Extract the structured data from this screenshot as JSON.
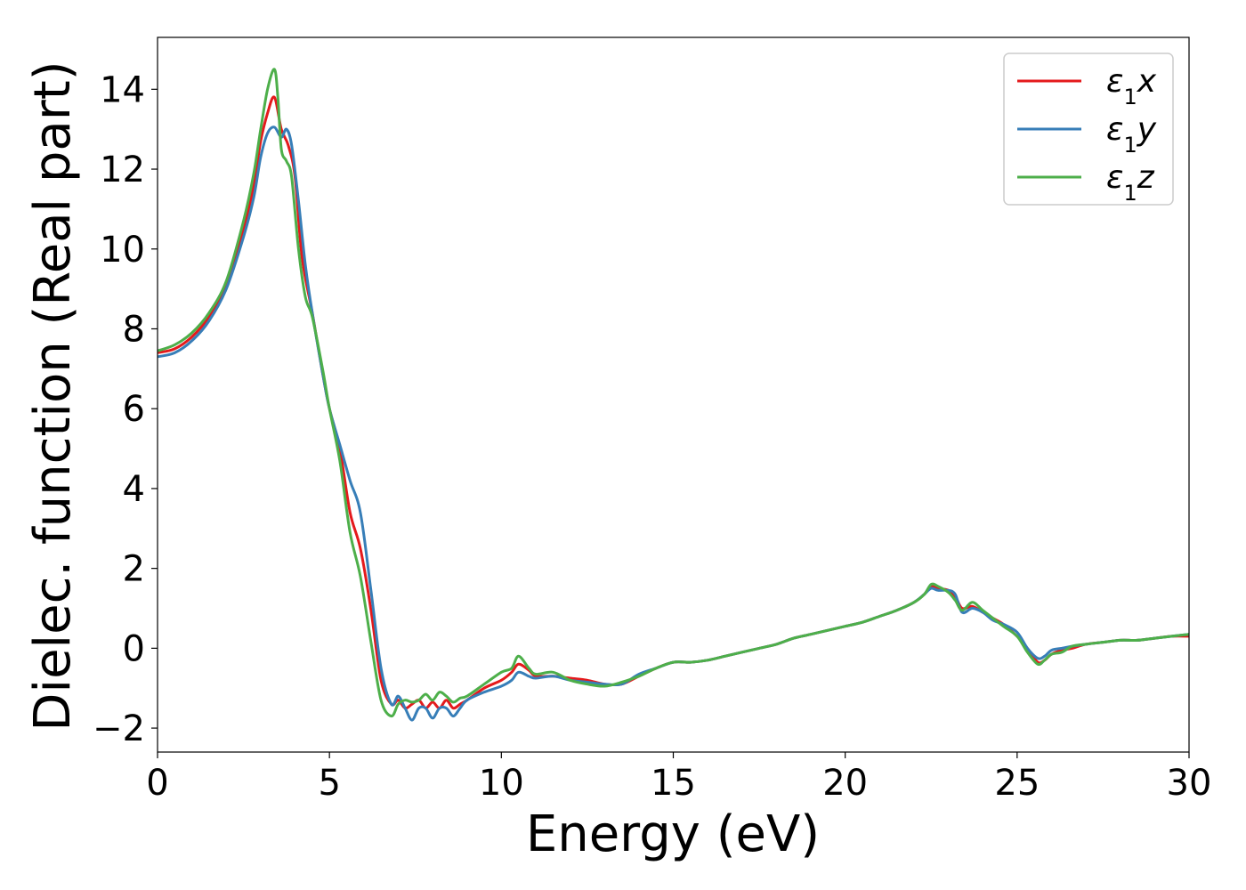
{
  "chart_data": {
    "type": "line",
    "title": "",
    "xlabel": "Energy (eV)",
    "ylabel": "Dielec. function (Real part)",
    "xlim": [
      0,
      30
    ],
    "ylim": [
      -2.6,
      15.3
    ],
    "xticks": [
      0,
      5,
      10,
      15,
      20,
      25,
      30
    ],
    "yticks": [
      -2,
      0,
      2,
      4,
      6,
      8,
      10,
      12,
      14
    ],
    "ytick_labels": [
      "−2",
      "0",
      "2",
      "4",
      "6",
      "8",
      "10",
      "12",
      "14"
    ],
    "grid": false,
    "legend": "top-right",
    "series": [
      {
        "name": "ε₁x",
        "legend_base": "ε",
        "legend_sub": "1",
        "legend_suffix": "x",
        "color": "#e41a1c",
        "x": [
          0,
          0.5,
          1,
          1.5,
          2,
          2.5,
          2.8,
          3,
          3.2,
          3.4,
          3.6,
          3.8,
          4,
          4.2,
          4.5,
          4.8,
          5,
          5.3,
          5.6,
          5.9,
          6.2,
          6.5,
          6.8,
          7,
          7.2,
          7.4,
          7.6,
          7.8,
          8,
          8.2,
          8.4,
          8.6,
          8.8,
          9,
          9.5,
          10,
          10.3,
          10.5,
          10.8,
          11,
          11.5,
          12,
          12.5,
          13,
          13.5,
          14,
          14.5,
          15,
          15.5,
          16,
          16.5,
          17,
          17.5,
          18,
          18.5,
          19,
          19.5,
          20,
          20.5,
          21,
          21.5,
          22,
          22.3,
          22.5,
          22.7,
          23,
          23.2,
          23.4,
          23.7,
          24,
          24.3,
          24.6,
          25,
          25.3,
          25.6,
          25.8,
          26,
          26.3,
          26.6,
          27,
          27.5,
          28,
          28.5,
          29,
          29.5,
          30
        ],
        "y": [
          7.4,
          7.5,
          7.8,
          8.3,
          9.1,
          10.5,
          11.6,
          12.7,
          13.4,
          13.8,
          13.0,
          12.6,
          11.8,
          9.8,
          8.4,
          6.9,
          6.0,
          5.0,
          3.4,
          2.5,
          1.0,
          -0.8,
          -1.4,
          -1.3,
          -1.5,
          -1.4,
          -1.3,
          -1.5,
          -1.35,
          -1.5,
          -1.3,
          -1.5,
          -1.4,
          -1.3,
          -1.0,
          -0.8,
          -0.6,
          -0.4,
          -0.55,
          -0.7,
          -0.7,
          -0.75,
          -0.8,
          -0.9,
          -0.9,
          -0.7,
          -0.5,
          -0.35,
          -0.35,
          -0.3,
          -0.2,
          -0.1,
          0.0,
          0.1,
          0.25,
          0.35,
          0.45,
          0.55,
          0.65,
          0.8,
          0.95,
          1.15,
          1.35,
          1.55,
          1.5,
          1.45,
          1.3,
          1.0,
          1.05,
          0.9,
          0.75,
          0.6,
          0.3,
          0.0,
          -0.35,
          -0.3,
          -0.15,
          -0.05,
          0.0,
          0.1,
          0.15,
          0.2,
          0.2,
          0.25,
          0.3,
          0.3
        ]
      },
      {
        "name": "ε₁y",
        "legend_base": "ε",
        "legend_sub": "1",
        "legend_suffix": "y",
        "color": "#377eb8",
        "x": [
          0,
          0.5,
          1,
          1.5,
          2,
          2.5,
          2.8,
          3,
          3.2,
          3.4,
          3.6,
          3.75,
          3.9,
          4.1,
          4.3,
          4.5,
          4.8,
          5,
          5.3,
          5.6,
          5.9,
          6.2,
          6.5,
          6.8,
          7,
          7.2,
          7.4,
          7.6,
          7.8,
          8,
          8.2,
          8.4,
          8.6,
          8.8,
          9,
          9.5,
          10,
          10.3,
          10.5,
          10.8,
          11,
          11.5,
          12,
          12.5,
          13,
          13.5,
          14,
          14.5,
          15,
          15.5,
          16,
          16.5,
          17,
          17.5,
          18,
          18.5,
          19,
          19.5,
          20,
          20.5,
          21,
          21.5,
          22,
          22.3,
          22.5,
          22.7,
          23,
          23.2,
          23.4,
          23.7,
          24,
          24.3,
          24.6,
          25,
          25.3,
          25.6,
          25.8,
          26,
          26.3,
          26.6,
          27,
          27.5,
          28,
          28.5,
          29,
          29.5,
          30
        ],
        "y": [
          7.3,
          7.4,
          7.7,
          8.2,
          9.0,
          10.3,
          11.3,
          12.3,
          12.9,
          13.05,
          12.8,
          13.0,
          12.6,
          11.2,
          9.6,
          8.4,
          6.9,
          6.0,
          5.1,
          4.2,
          3.4,
          1.5,
          -0.5,
          -1.4,
          -1.2,
          -1.5,
          -1.8,
          -1.5,
          -1.5,
          -1.75,
          -1.5,
          -1.5,
          -1.7,
          -1.5,
          -1.3,
          -1.1,
          -0.95,
          -0.8,
          -0.6,
          -0.7,
          -0.75,
          -0.7,
          -0.8,
          -0.85,
          -0.9,
          -0.9,
          -0.65,
          -0.5,
          -0.35,
          -0.35,
          -0.3,
          -0.2,
          -0.1,
          0.0,
          0.1,
          0.25,
          0.35,
          0.45,
          0.55,
          0.65,
          0.8,
          0.95,
          1.15,
          1.35,
          1.5,
          1.45,
          1.45,
          1.35,
          0.9,
          1.0,
          0.9,
          0.7,
          0.6,
          0.4,
          0.0,
          -0.25,
          -0.2,
          -0.05,
          0.0,
          0.05,
          0.1,
          0.15,
          0.2,
          0.2,
          0.25,
          0.3,
          0.35
        ]
      },
      {
        "name": "ε₁z",
        "legend_base": "ε",
        "legend_sub": "1",
        "legend_suffix": "z",
        "color": "#4daf4a",
        "x": [
          0,
          0.5,
          1,
          1.5,
          2,
          2.5,
          2.8,
          3,
          3.2,
          3.4,
          3.5,
          3.6,
          3.75,
          3.9,
          4.1,
          4.3,
          4.5,
          4.8,
          5,
          5.3,
          5.6,
          5.9,
          6.2,
          6.5,
          6.8,
          7,
          7.2,
          7.4,
          7.6,
          7.8,
          8,
          8.2,
          8.4,
          8.6,
          8.8,
          9,
          9.5,
          10,
          10.3,
          10.5,
          10.8,
          11,
          11.5,
          12,
          12.5,
          13,
          13.5,
          14,
          14.5,
          15,
          15.5,
          16,
          16.5,
          17,
          17.5,
          18,
          18.5,
          19,
          19.5,
          20,
          20.5,
          21,
          21.5,
          22,
          22.3,
          22.5,
          22.7,
          23,
          23.2,
          23.4,
          23.7,
          24,
          24.3,
          24.6,
          25,
          25.3,
          25.6,
          25.8,
          26,
          26.3,
          26.6,
          27,
          27.5,
          28,
          28.5,
          29,
          29.5,
          30
        ],
        "y": [
          7.45,
          7.6,
          7.9,
          8.4,
          9.2,
          10.7,
          11.9,
          13.0,
          14.0,
          14.5,
          13.8,
          12.5,
          12.2,
          11.8,
          10.0,
          8.8,
          8.3,
          7.0,
          6.0,
          4.7,
          2.9,
          1.8,
          0.2,
          -1.3,
          -1.7,
          -1.4,
          -1.3,
          -1.35,
          -1.3,
          -1.15,
          -1.3,
          -1.1,
          -1.2,
          -1.35,
          -1.25,
          -1.2,
          -0.9,
          -0.6,
          -0.5,
          -0.2,
          -0.5,
          -0.65,
          -0.6,
          -0.8,
          -0.9,
          -0.95,
          -0.85,
          -0.7,
          -0.5,
          -0.35,
          -0.35,
          -0.3,
          -0.2,
          -0.1,
          0.0,
          0.1,
          0.25,
          0.35,
          0.45,
          0.55,
          0.65,
          0.8,
          0.95,
          1.15,
          1.35,
          1.6,
          1.55,
          1.4,
          1.2,
          0.95,
          1.15,
          0.95,
          0.75,
          0.55,
          0.3,
          -0.1,
          -0.4,
          -0.3,
          -0.15,
          -0.1,
          0.05,
          0.1,
          0.15,
          0.2,
          0.2,
          0.25,
          0.3,
          0.35
        ]
      }
    ]
  }
}
